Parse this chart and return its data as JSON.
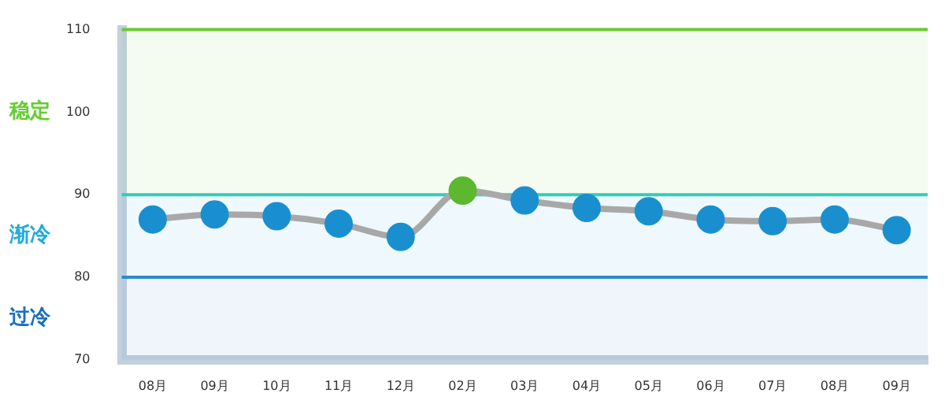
{
  "chart_data": {
    "type": "line",
    "categories": [
      "08月",
      "09月",
      "10月",
      "11月",
      "12月",
      "02月",
      "03月",
      "04月",
      "05月",
      "06月",
      "07月",
      "08月",
      "09月"
    ],
    "series": [
      {
        "color": "#a8a8a8",
        "colors": [
          "#1a8fd0",
          "#1a8fd0",
          "#1a8fd0",
          "#1a8fd0",
          "#1a8fd0",
          "#5cb82e",
          "#1a8fd0",
          "#1a8fd0",
          "#1a8fd0",
          "#1a8fd0",
          "#1a8fd0",
          "#1a8fd0",
          "#1a8fd0"
        ],
        "values": [
          87.0,
          87.6,
          87.4,
          86.5,
          84.9,
          90.5,
          89.3,
          88.4,
          88.0,
          87.0,
          86.8,
          87.0,
          85.7
        ]
      }
    ],
    "ylim": [
      70,
      110
    ],
    "yticks": [
      70,
      80,
      90,
      100,
      110
    ],
    "marker": "circle",
    "legend": false,
    "ref_lines": [
      {
        "axis": "y",
        "value": 110,
        "color": "#66cc33"
      },
      {
        "axis": "y",
        "value": 90,
        "color": "#33ccbb"
      },
      {
        "axis": "y",
        "value": 80,
        "color": "#2a8ccc"
      }
    ],
    "bands": [
      {
        "axis": "y",
        "from": 90,
        "to": 110,
        "label": "稳定",
        "color": "#66cc33"
      },
      {
        "axis": "y",
        "from": 80,
        "to": 90,
        "label": "渐冷",
        "color": "#22aadd"
      },
      {
        "axis": "y",
        "from": 70,
        "to": 80,
        "label": "过冷",
        "color": "#1a6fc0"
      }
    ]
  }
}
